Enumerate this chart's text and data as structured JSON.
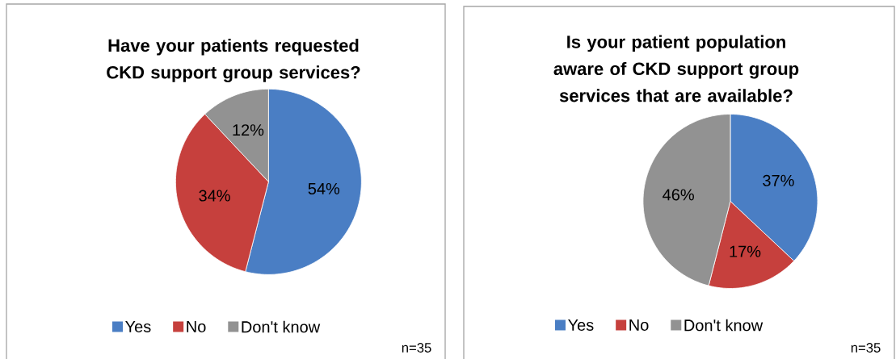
{
  "chart_data": [
    {
      "type": "pie",
      "title": "Have your patients requested CKD support group services?",
      "categories": [
        "Yes",
        "No",
        "Don't know"
      ],
      "values": [
        54,
        34,
        12
      ],
      "colors": [
        "#4a7ec4",
        "#c6403d",
        "#929292"
      ],
      "value_labels": [
        "54%",
        "34%",
        "12%"
      ],
      "legend": "bottom",
      "annotations": [
        "n=35"
      ]
    },
    {
      "type": "pie",
      "title": "Is your patient population aware of CKD support group services that are available?",
      "categories": [
        "Yes",
        "No",
        "Don't know"
      ],
      "values": [
        37,
        17,
        46
      ],
      "colors": [
        "#4a7ec4",
        "#c6403d",
        "#929292"
      ],
      "value_labels": [
        "37%",
        "17%",
        "46%"
      ],
      "legend": "bottom",
      "annotations": [
        "n=35"
      ]
    }
  ]
}
